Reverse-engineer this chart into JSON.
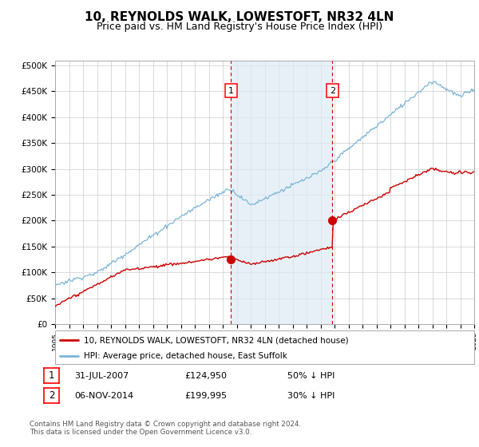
{
  "title": "10, REYNOLDS WALK, LOWESTOFT, NR32 4LN",
  "subtitle": "Price paid vs. HM Land Registry's House Price Index (HPI)",
  "title_fontsize": 11,
  "subtitle_fontsize": 9,
  "ylabel_ticks": [
    "£0",
    "£50K",
    "£100K",
    "£150K",
    "£200K",
    "£250K",
    "£300K",
    "£350K",
    "£400K",
    "£450K",
    "£500K"
  ],
  "ytick_values": [
    0,
    50000,
    100000,
    150000,
    200000,
    250000,
    300000,
    350000,
    400000,
    450000,
    500000
  ],
  "ylim": [
    0,
    510000
  ],
  "background_color": "#ffffff",
  "plot_bg_color": "#ffffff",
  "grid_color": "#cccccc",
  "hpi_color": "#7ab4d8",
  "price_color": "#cc0000",
  "sale1_date_num": 2007.58,
  "sale1_price": 124950,
  "sale1_label": "1",
  "sale1_date_str": "31-JUL-2007",
  "sale1_price_str": "£124,950",
  "sale1_hpi_str": "50% ↓ HPI",
  "sale2_date_num": 2014.85,
  "sale2_price": 199995,
  "sale2_label": "2",
  "sale2_date_str": "06-NOV-2014",
  "sale2_price_str": "£199,995",
  "sale2_hpi_str": "30% ↓ HPI",
  "legend_line1": "10, REYNOLDS WALK, LOWESTOFT, NR32 4LN (detached house)",
  "legend_line2": "HPI: Average price, detached house, East Suffolk",
  "footer": "Contains HM Land Registry data © Crown copyright and database right 2024.\nThis data is licensed under the Open Government Licence v3.0.",
  "xmin": 1995,
  "xmax": 2025,
  "span_color": "#ddeaf5",
  "span_alpha": 0.7
}
